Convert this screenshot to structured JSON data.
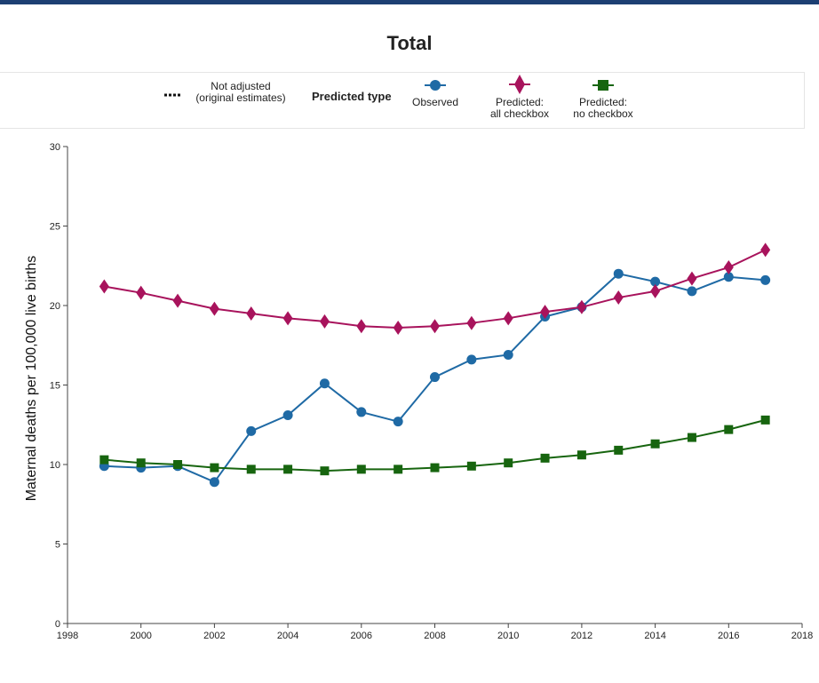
{
  "chart_data": {
    "type": "line",
    "title": "Total",
    "ylabel": "Maternal deaths per 100,000 live births",
    "xlabel": "",
    "xlim": [
      1998,
      2018
    ],
    "ylim": [
      0,
      30
    ],
    "x_ticks": [
      1998,
      2000,
      2002,
      2004,
      2006,
      2008,
      2010,
      2012,
      2014,
      2016,
      2018
    ],
    "y_ticks": [
      0,
      5,
      10,
      15,
      20,
      25,
      30
    ],
    "legend_position": "top",
    "grid": false,
    "x": [
      1999,
      2000,
      2001,
      2002,
      2003,
      2004,
      2005,
      2006,
      2007,
      2008,
      2009,
      2010,
      2011,
      2012,
      2013,
      2014,
      2015,
      2016,
      2017
    ],
    "series": [
      {
        "name": "Observed",
        "color": "#1f6aa5",
        "marker": "circle",
        "values": [
          9.9,
          9.8,
          9.9,
          8.9,
          12.1,
          13.1,
          15.1,
          13.3,
          12.7,
          15.5,
          16.6,
          16.9,
          19.3,
          19.9,
          22.0,
          21.5,
          20.9,
          21.8,
          21.6
        ]
      },
      {
        "name": "Predicted: all checkbox",
        "color": "#a8135c",
        "marker": "diamond",
        "values": [
          21.2,
          20.8,
          20.3,
          19.8,
          19.5,
          19.2,
          19.0,
          18.7,
          18.6,
          18.7,
          18.9,
          19.2,
          19.6,
          19.9,
          20.5,
          20.9,
          21.7,
          22.4,
          23.5
        ]
      },
      {
        "name": "Predicted: no checkbox",
        "color": "#17650f",
        "marker": "square",
        "values": [
          10.3,
          10.1,
          10.0,
          9.8,
          9.7,
          9.7,
          9.6,
          9.7,
          9.7,
          9.8,
          9.9,
          10.1,
          10.4,
          10.6,
          10.9,
          11.3,
          11.7,
          12.2,
          12.8
        ]
      }
    ]
  },
  "legend": {
    "not_adjusted_line1": "Not adjusted",
    "not_adjusted_line2": "(original estimates)",
    "heading": "Predicted type",
    "observed": "Observed",
    "all_line1": "Predicted:",
    "all_line2": "all checkbox",
    "none_line1": "Predicted:",
    "none_line2": "no checkbox"
  },
  "colors": {
    "topbar": "#1d3f73",
    "axis": "#444444"
  }
}
